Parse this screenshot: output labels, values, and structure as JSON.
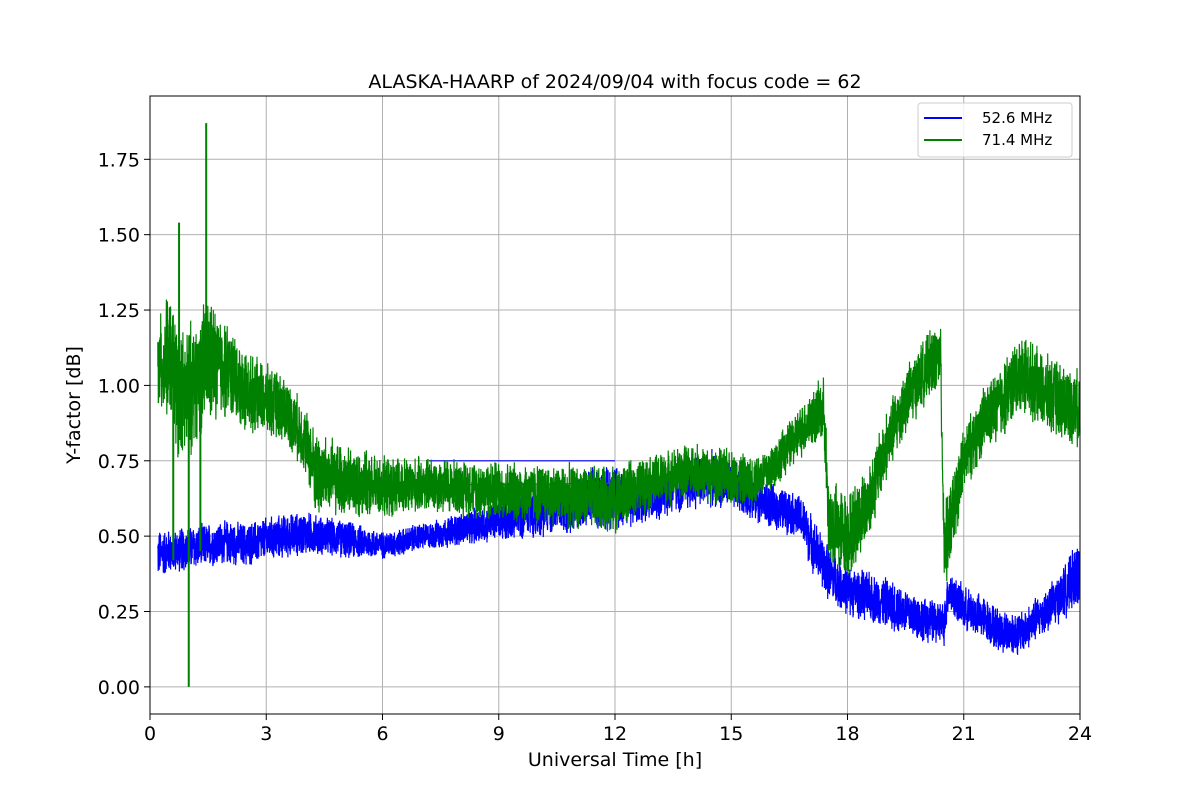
{
  "chart_data": {
    "type": "line",
    "title": "ALASKA-HAARP of 2024/09/04 with focus code = 62",
    "xlabel": "Universal Time [h]",
    "ylabel": "Y-factor [dB]",
    "xlim": [
      0,
      24
    ],
    "ylim": [
      -0.09,
      1.96
    ],
    "xticks": [
      0,
      3,
      6,
      9,
      12,
      15,
      18,
      21,
      24
    ],
    "yticks": [
      0.0,
      0.25,
      0.5,
      0.75,
      1.0,
      1.25,
      1.5,
      1.75
    ],
    "xtick_labels": [
      "0",
      "3",
      "6",
      "9",
      "12",
      "15",
      "18",
      "21",
      "24"
    ],
    "ytick_labels": [
      "0.00",
      "0.25",
      "0.50",
      "0.75",
      "1.00",
      "1.25",
      "1.50",
      "1.75"
    ],
    "grid": true,
    "legend_position": "top-right",
    "series": [
      {
        "name": "52.6 MHz",
        "color": "#0000ff",
        "segments": [
          {
            "x": [
              0.2,
              0.5,
              1.0,
              1.5,
              2.0,
              2.5,
              3.0,
              3.5,
              4.0,
              4.5,
              5.0,
              5.5,
              6.0,
              6.5,
              7.0,
              7.2,
              12.0,
              12.5,
              13.0,
              13.5,
              14.0,
              14.5,
              15.0,
              15.5,
              16.0,
              16.5,
              16.8,
              17.0,
              17.2,
              17.5,
              18.0,
              18.5,
              19.0,
              19.5,
              20.0,
              20.5,
              20.6,
              21.0,
              21.5,
              22.0,
              22.5,
              23.0,
              23.5,
              24.0
            ],
            "center": [
              0.44,
              0.45,
              0.46,
              0.47,
              0.48,
              0.47,
              0.49,
              0.5,
              0.51,
              0.5,
              0.49,
              0.48,
              0.47,
              0.48,
              0.5,
              0.5,
              0.64,
              0.62,
              0.64,
              0.66,
              0.68,
              0.69,
              0.67,
              0.64,
              0.6,
              0.58,
              0.56,
              0.5,
              0.45,
              0.38,
              0.32,
              0.3,
              0.28,
              0.25,
              0.22,
              0.21,
              0.32,
              0.26,
              0.23,
              0.18,
              0.18,
              0.24,
              0.3,
              0.38
            ],
            "amp": [
              0.09,
              0.08,
              0.08,
              0.08,
              0.08,
              0.08,
              0.08,
              0.08,
              0.08,
              0.07,
              0.07,
              0.06,
              0.05,
              0.05,
              0.05,
              0.05,
              0.12,
              0.1,
              0.1,
              0.1,
              0.1,
              0.1,
              0.09,
              0.09,
              0.08,
              0.08,
              0.08,
              0.1,
              0.1,
              0.1,
              0.09,
              0.09,
              0.09,
              0.09,
              0.08,
              0.08,
              0.08,
              0.08,
              0.08,
              0.08,
              0.08,
              0.08,
              0.09,
              0.12
            ]
          },
          {
            "x": [
              7.2,
              12.0
            ],
            "center": [
              0.75,
              0.75
            ],
            "amp": [
              0,
              0
            ]
          }
        ]
      },
      {
        "name": "71.4 MHz",
        "color": "#008000",
        "segments": [
          {
            "x": [
              0.2,
              0.5,
              0.8,
              1.0,
              1.2,
              1.5,
              2.0,
              2.5,
              3.0,
              3.5,
              4.0,
              4.3,
              4.6,
              5.0,
              5.5,
              6.0,
              6.5,
              7.0,
              7.2,
              12.0,
              12.5,
              13.0,
              13.5,
              14.0,
              14.5,
              15.0,
              15.5,
              16.0,
              16.5,
              17.0,
              17.4,
              17.5,
              18.0,
              18.5,
              19.0,
              19.5,
              20.0,
              20.4,
              20.5,
              21.0,
              21.5,
              22.0,
              22.5,
              23.0,
              23.5,
              24.0
            ],
            "center": [
              1.05,
              1.1,
              0.95,
              0.98,
              1.02,
              1.08,
              1.05,
              0.98,
              0.95,
              0.92,
              0.82,
              0.7,
              0.7,
              0.68,
              0.67,
              0.66,
              0.66,
              0.67,
              0.67,
              0.62,
              0.66,
              0.68,
              0.7,
              0.72,
              0.7,
              0.7,
              0.68,
              0.72,
              0.8,
              0.88,
              0.92,
              0.55,
              0.5,
              0.6,
              0.8,
              0.95,
              1.05,
              1.1,
              0.45,
              0.75,
              0.88,
              0.95,
              1.05,
              0.98,
              0.95,
              0.92
            ],
            "amp": [
              0.18,
              0.22,
              0.25,
              0.25,
              0.22,
              0.24,
              0.17,
              0.14,
              0.13,
              0.12,
              0.12,
              0.16,
              0.14,
              0.13,
              0.12,
              0.11,
              0.11,
              0.1,
              0.1,
              0.12,
              0.1,
              0.1,
              0.1,
              0.1,
              0.1,
              0.1,
              0.09,
              0.09,
              0.09,
              0.1,
              0.12,
              0.16,
              0.16,
              0.14,
              0.13,
              0.12,
              0.12,
              0.12,
              0.16,
              0.12,
              0.12,
              0.14,
              0.14,
              0.14,
              0.14,
              0.14
            ]
          },
          {
            "x": [
              7.2,
              12.0
            ],
            "center": [
              0.67,
              0.675
            ],
            "amp": [
              0,
              0
            ]
          }
        ],
        "spikes": [
          {
            "x": 1.0,
            "y": 0.0
          },
          {
            "x": 1.45,
            "y": 1.87
          },
          {
            "x": 0.75,
            "y": 1.54
          },
          {
            "x": 1.3,
            "y": 0.45
          },
          {
            "x": 0.6,
            "y": 0.42
          }
        ]
      }
    ]
  }
}
